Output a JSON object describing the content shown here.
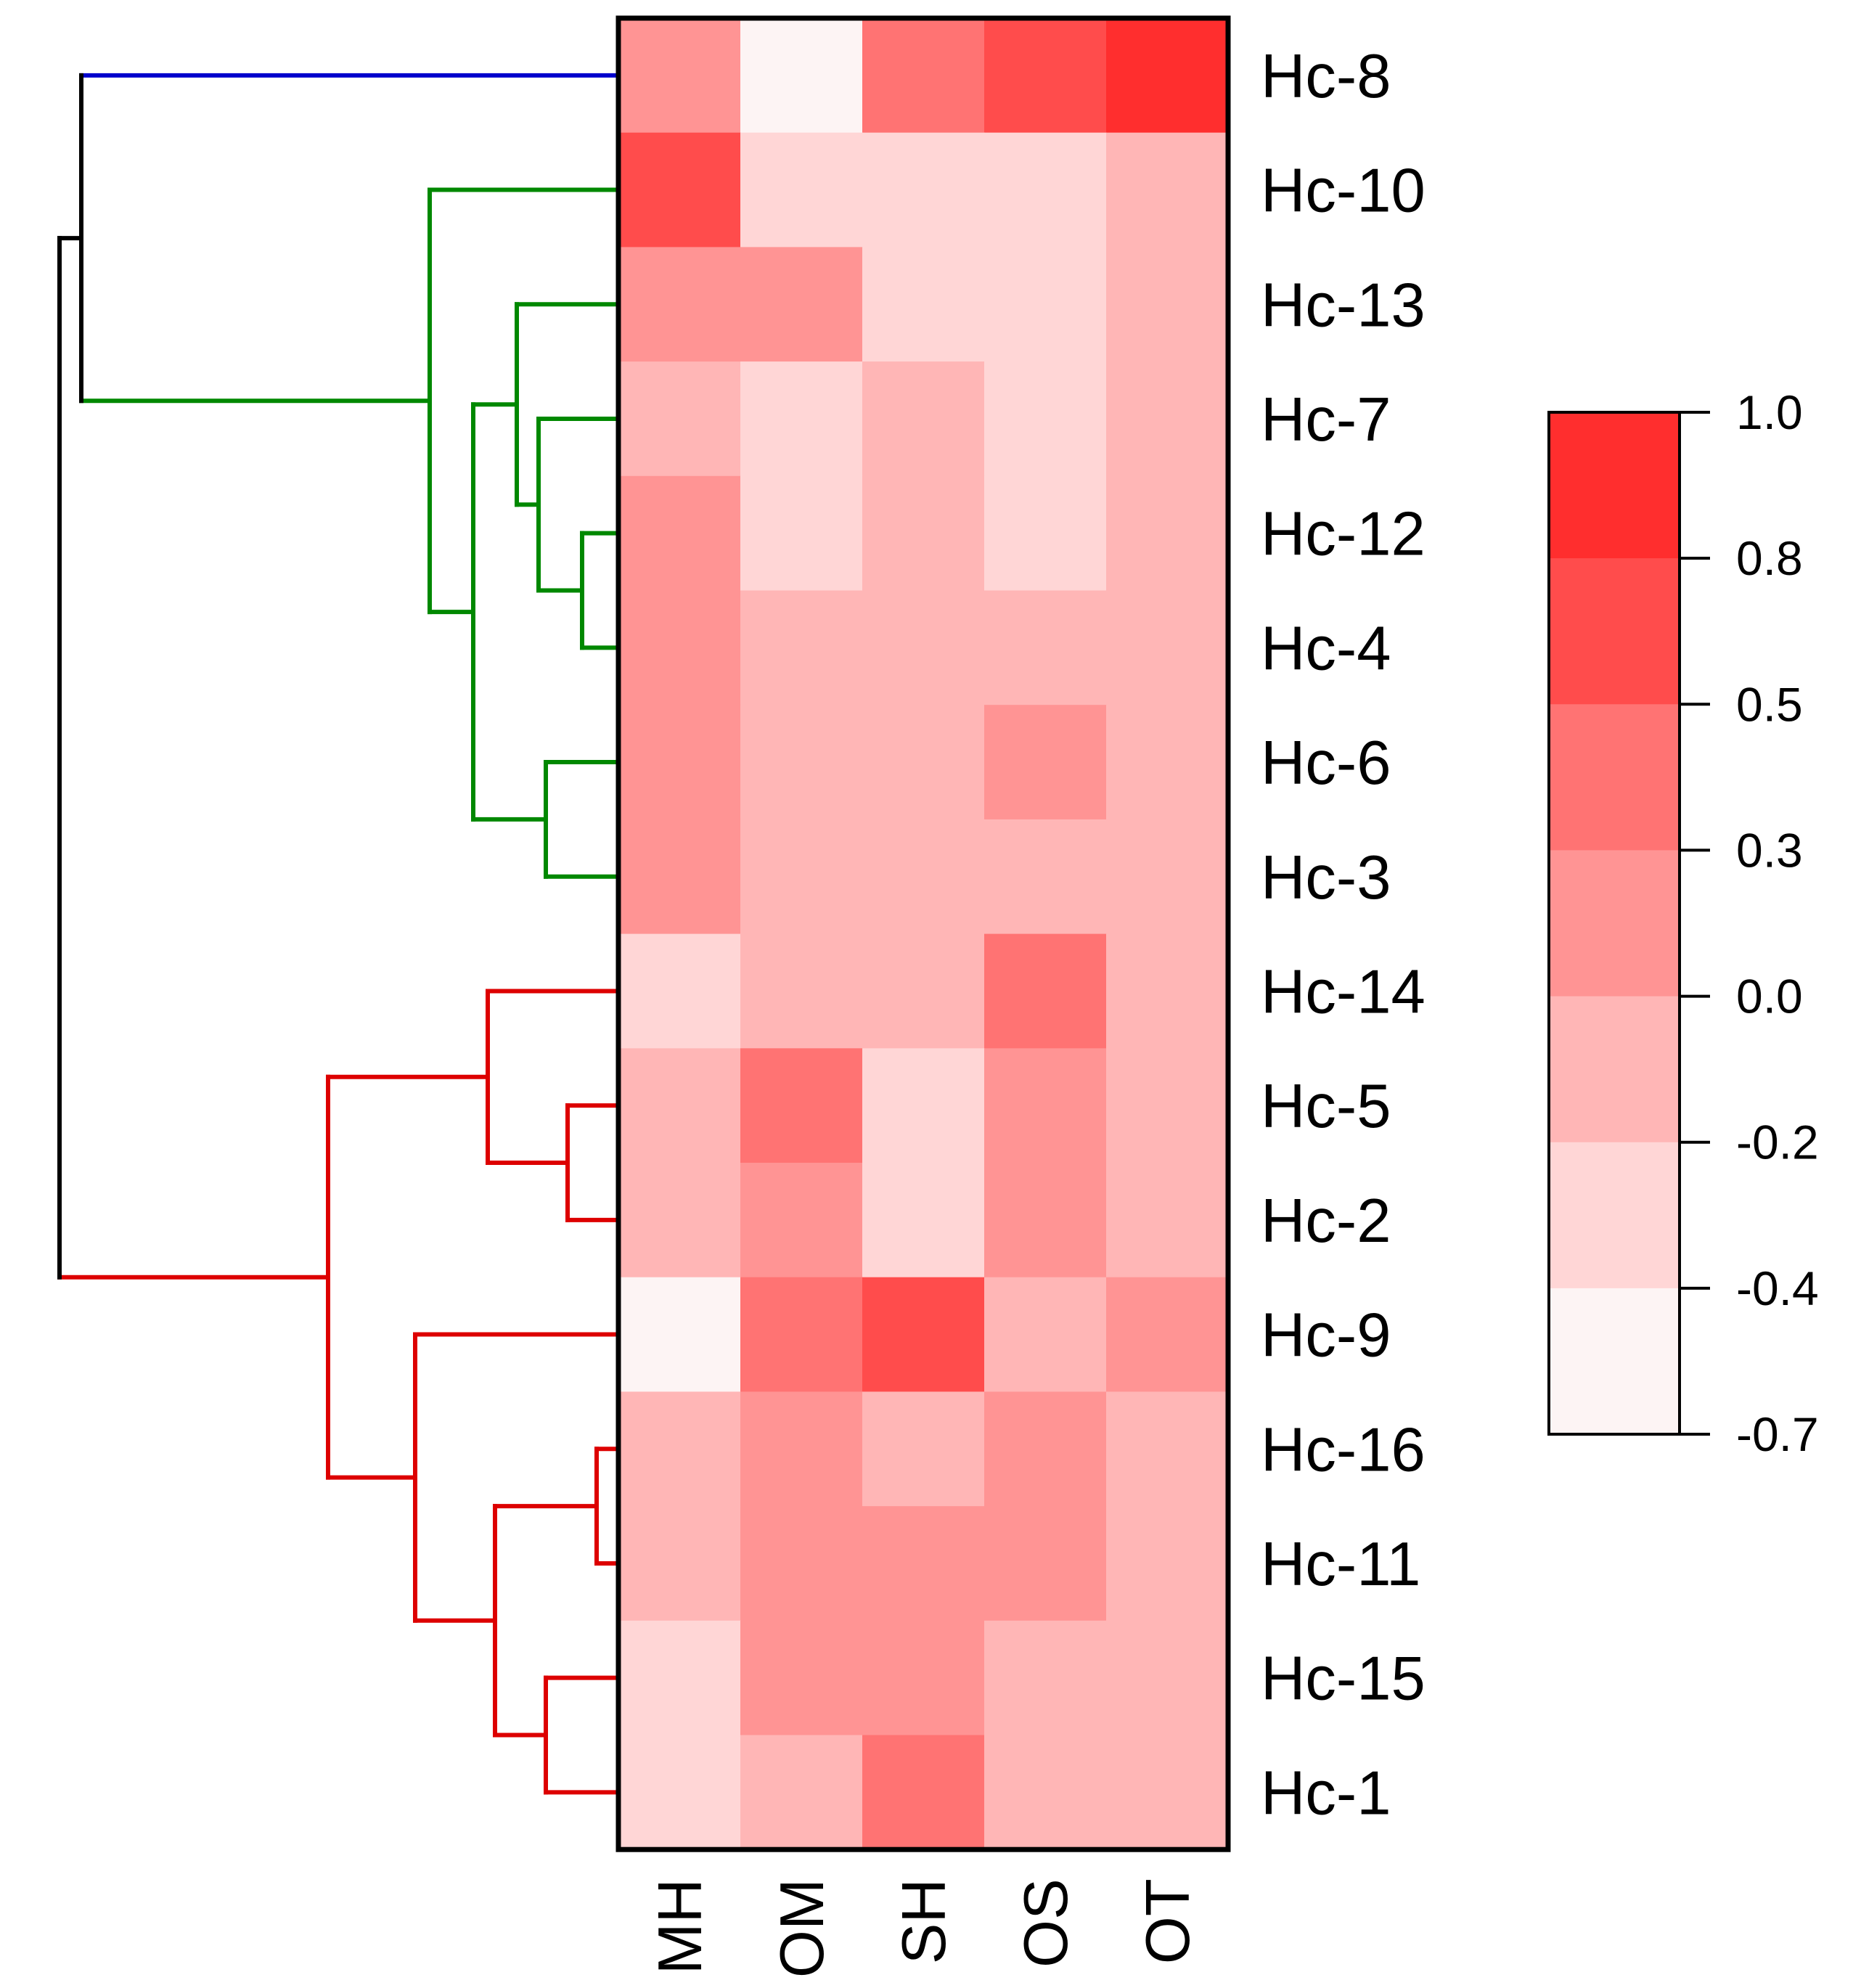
{
  "chart_data": {
    "type": "heatmap",
    "rows": [
      "Hc-8",
      "Hc-10",
      "Hc-13",
      "Hc-7",
      "Hc-12",
      "Hc-4",
      "Hc-6",
      "Hc-3",
      "Hc-14",
      "Hc-5",
      "Hc-2",
      "Hc-9",
      "Hc-16",
      "Hc-11",
      "Hc-15",
      "Hc-1"
    ],
    "columns": [
      "MH",
      "OM",
      "SH",
      "OS",
      "OT"
    ],
    "values": [
      [
        0.0,
        -0.6,
        0.3,
        0.6,
        0.9
      ],
      [
        0.6,
        -0.3,
        -0.3,
        -0.3,
        -0.1
      ],
      [
        0.1,
        0.1,
        -0.3,
        -0.3,
        -0.1
      ],
      [
        -0.1,
        -0.3,
        -0.1,
        -0.3,
        -0.1
      ],
      [
        0.1,
        -0.3,
        -0.1,
        -0.3,
        -0.1
      ],
      [
        0.1,
        -0.1,
        -0.1,
        -0.1,
        -0.1
      ],
      [
        0.1,
        -0.1,
        -0.1,
        0.1,
        -0.1
      ],
      [
        0.1,
        -0.1,
        -0.1,
        -0.1,
        -0.1
      ],
      [
        -0.3,
        -0.1,
        -0.1,
        0.4,
        -0.1
      ],
      [
        -0.1,
        0.4,
        -0.3,
        0.1,
        -0.1
      ],
      [
        -0.1,
        0.1,
        -0.3,
        0.1,
        -0.1
      ],
      [
        -0.6,
        0.4,
        0.6,
        -0.1,
        0.1
      ],
      [
        -0.1,
        0.1,
        -0.1,
        0.1,
        -0.1
      ],
      [
        -0.1,
        0.1,
        0.1,
        0.1,
        -0.1
      ],
      [
        -0.3,
        0.1,
        0.1,
        -0.1,
        -0.1
      ],
      [
        -0.3,
        -0.1,
        0.4,
        -0.1,
        -0.1
      ]
    ],
    "colorbar": {
      "ticks": [
        "1.0",
        "0.8",
        "0.5",
        "0.3",
        "0.0",
        "-0.2",
        "-0.4",
        "-0.7"
      ],
      "tick_values": [
        1.0,
        0.8,
        0.5,
        0.3,
        0.0,
        -0.2,
        -0.4,
        -0.7
      ],
      "bins": [
        {
          "min": 0.8,
          "max": 1.0,
          "color": "#ff2e2e"
        },
        {
          "min": 0.5,
          "max": 0.8,
          "color": "#ff4c4c"
        },
        {
          "min": 0.3,
          "max": 0.5,
          "color": "#ff7373"
        },
        {
          "min": 0.0,
          "max": 0.3,
          "color": "#ff9494"
        },
        {
          "min": -0.2,
          "max": 0.0,
          "color": "#ffb6b6"
        },
        {
          "min": -0.4,
          "max": -0.2,
          "color": "#ffd6d6"
        },
        {
          "min": -0.7,
          "max": -0.4,
          "color": "#fdf4f4"
        }
      ]
    },
    "dendrogram": {
      "clusters": [
        {
          "name": "blue",
          "color": "#0000cc",
          "members": [
            "Hc-8"
          ]
        },
        {
          "name": "green",
          "color": "#008800",
          "members": [
            "Hc-10",
            "Hc-13",
            "Hc-7",
            "Hc-12",
            "Hc-4",
            "Hc-6",
            "Hc-3"
          ]
        },
        {
          "name": "red",
          "color": "#dd0000",
          "members": [
            "Hc-14",
            "Hc-5",
            "Hc-2",
            "Hc-9",
            "Hc-16",
            "Hc-11",
            "Hc-15",
            "Hc-1"
          ]
        }
      ],
      "root_color": "#000000",
      "merges": [
        {
          "id": "g1",
          "children": [
            "Hc-12",
            "Hc-4"
          ],
          "height": 0.05,
          "cluster": "green"
        },
        {
          "id": "g2",
          "children": [
            "Hc-7",
            "g1"
          ],
          "height": 0.11,
          "cluster": "green"
        },
        {
          "id": "g3",
          "children": [
            "Hc-13",
            "g2"
          ],
          "height": 0.14,
          "cluster": "green"
        },
        {
          "id": "g4",
          "children": [
            "Hc-6",
            "Hc-3"
          ],
          "height": 0.1,
          "cluster": "green"
        },
        {
          "id": "g5",
          "children": [
            "g3",
            "g4"
          ],
          "height": 0.2,
          "cluster": "green"
        },
        {
          "id": "g6",
          "children": [
            "Hc-10",
            "g5"
          ],
          "height": 0.26,
          "cluster": "green"
        },
        {
          "id": "r1",
          "children": [
            "Hc-5",
            "Hc-2"
          ],
          "height": 0.07,
          "cluster": "red"
        },
        {
          "id": "r2",
          "children": [
            "Hc-14",
            "r1"
          ],
          "height": 0.18,
          "cluster": "red"
        },
        {
          "id": "r3",
          "children": [
            "Hc-16",
            "Hc-11"
          ],
          "height": 0.03,
          "cluster": "red"
        },
        {
          "id": "r4",
          "children": [
            "Hc-15",
            "Hc-1"
          ],
          "height": 0.1,
          "cluster": "red"
        },
        {
          "id": "r5",
          "children": [
            "r3",
            "r4"
          ],
          "height": 0.17,
          "cluster": "red"
        },
        {
          "id": "r6",
          "children": [
            "Hc-9",
            "r5"
          ],
          "height": 0.28,
          "cluster": "red"
        },
        {
          "id": "r7",
          "children": [
            "r2",
            "r6"
          ],
          "height": 0.4,
          "cluster": "red"
        },
        {
          "id": "k1",
          "children": [
            "Hc-8",
            "g6"
          ],
          "height": 0.74,
          "cluster": "root"
        },
        {
          "id": "k2",
          "children": [
            "k1",
            "r7"
          ],
          "height": 0.77,
          "cluster": "root"
        }
      ]
    }
  }
}
